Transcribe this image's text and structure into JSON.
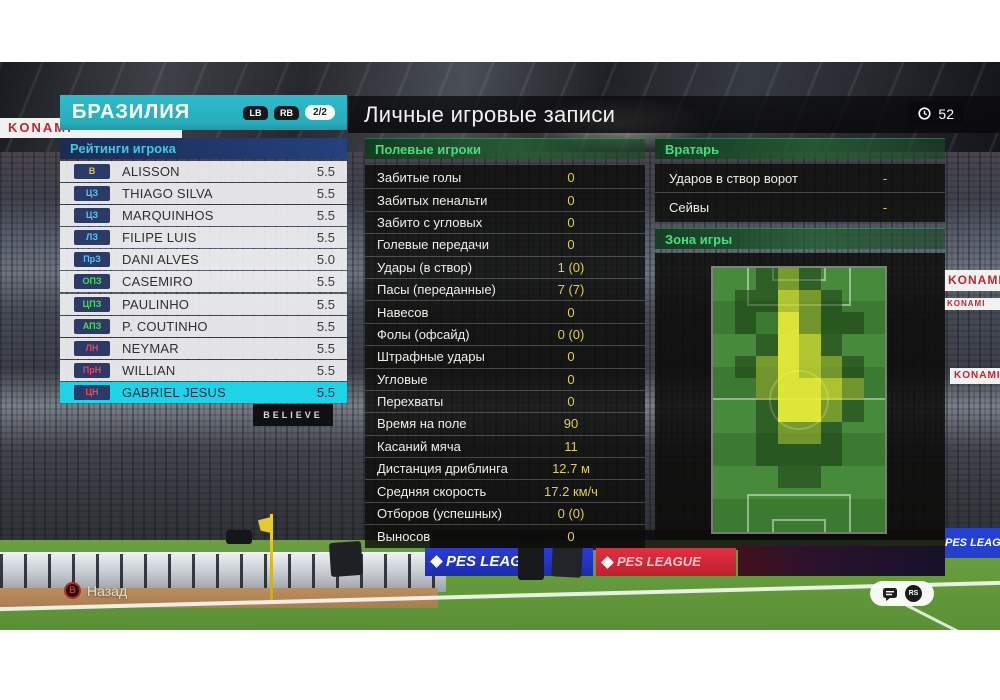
{
  "header": {
    "title": "Личные игровые записи",
    "clock_value": "52"
  },
  "team_panel": {
    "title": "БРАЗИЛИЯ",
    "lb_label": "LB",
    "rb_label": "RB",
    "page_indicator": "2/2",
    "section_title": "Рейтинги игрока",
    "position_colors": {
      "gk": "#e0c838",
      "def": "#55c8f0",
      "mid": "#50d855",
      "fwd": "#e84862"
    },
    "players": [
      {
        "pos": "В",
        "role": "gk",
        "name": "ALISSON",
        "rating": "5.5",
        "selected": false
      },
      {
        "pos": "ЦЗ",
        "role": "def",
        "name": "THIAGO SILVA",
        "rating": "5.5",
        "selected": false
      },
      {
        "pos": "ЦЗ",
        "role": "def",
        "name": "MARQUINHOS",
        "rating": "5.5",
        "selected": false
      },
      {
        "pos": "ЛЗ",
        "role": "def",
        "name": "FILIPE LUIS",
        "rating": "5.5",
        "selected": false
      },
      {
        "pos": "ПрЗ",
        "role": "def",
        "name": "DANI ALVES",
        "rating": "5.0",
        "selected": false
      },
      {
        "pos": "ОПЗ",
        "role": "mid",
        "name": "CASEMIRO",
        "rating": "5.5",
        "selected": false
      },
      {
        "pos": "ЦПЗ",
        "role": "mid",
        "name": "PAULINHO",
        "rating": "5.5",
        "selected": false
      },
      {
        "pos": "АПЗ",
        "role": "mid",
        "name": "P. COUTINHO",
        "rating": "5.5",
        "selected": false
      },
      {
        "pos": "ЛН",
        "role": "fwd",
        "name": "NEYMAR",
        "rating": "5.5",
        "selected": false
      },
      {
        "pos": "ПрН",
        "role": "fwd",
        "name": "WILLIAN",
        "rating": "5.5",
        "selected": false
      },
      {
        "pos": "ЦН",
        "role": "fwd",
        "name": "GABRIEL JESUS",
        "rating": "5.5",
        "selected": true
      }
    ]
  },
  "field_players": {
    "section_title": "Полевые игроки",
    "stats": [
      {
        "label": "Забитые голы",
        "value": "0"
      },
      {
        "label": "Забитых пенальти",
        "value": "0"
      },
      {
        "label": "Забито с угловых",
        "value": "0"
      },
      {
        "label": "Голевые передачи",
        "value": "0"
      },
      {
        "label": "Удары (в створ)",
        "value": "1 (0)"
      },
      {
        "label": "Пасы (переданные)",
        "value": "7 (7)"
      },
      {
        "label": "Навесов",
        "value": "0"
      },
      {
        "label": "Фолы (офсайд)",
        "value": "0 (0)"
      },
      {
        "label": "Штрафные удары",
        "value": "0"
      },
      {
        "label": "Угловые",
        "value": "0"
      },
      {
        "label": "Перехваты",
        "value": "0"
      },
      {
        "label": "Время на поле",
        "value": "90"
      },
      {
        "label": "Касаний мяча",
        "value": "11"
      },
      {
        "label": "Дистанция дриблинга",
        "value": "12.7 м"
      },
      {
        "label": "Средняя скорость",
        "value": "17.2 км/ч"
      },
      {
        "label": "Отборов (успешных)",
        "value": "0 (0)"
      },
      {
        "label": "Выносов",
        "value": "0"
      }
    ]
  },
  "goalkeeper": {
    "section_title": "Вратарь",
    "stats": [
      {
        "label": "Ударов в створ ворот",
        "value": "-"
      },
      {
        "label": "Сейвы",
        "value": "-"
      }
    ]
  },
  "play_zone": {
    "section_title": "Зона игры",
    "heatmap": {
      "cols": 8,
      "rows": 12,
      "legend": "0=none 1=low 2=medium 3=high 4=peak",
      "cells": [
        [
          0,
          0,
          1,
          2,
          1,
          0,
          0,
          0
        ],
        [
          0,
          1,
          1,
          3,
          2,
          1,
          0,
          0
        ],
        [
          0,
          1,
          0,
          4,
          2,
          1,
          1,
          0
        ],
        [
          0,
          0,
          1,
          4,
          3,
          1,
          0,
          0
        ],
        [
          0,
          1,
          2,
          4,
          3,
          2,
          1,
          0
        ],
        [
          0,
          0,
          2,
          4,
          4,
          3,
          2,
          0
        ],
        [
          0,
          0,
          1,
          4,
          4,
          2,
          1,
          0
        ],
        [
          0,
          0,
          1,
          2,
          2,
          1,
          0,
          0
        ],
        [
          0,
          0,
          1,
          1,
          1,
          1,
          0,
          0
        ],
        [
          0,
          0,
          0,
          1,
          1,
          0,
          0,
          0
        ],
        [
          0,
          0,
          0,
          0,
          0,
          0,
          0,
          0
        ],
        [
          0,
          0,
          0,
          0,
          0,
          0,
          0,
          0
        ]
      ]
    }
  },
  "footer": {
    "back_button": "B",
    "back_label": "Назад",
    "rs_label": "RS"
  },
  "background": {
    "ad_text": "PES LEAGUE",
    "banner_text": "BELIEVE",
    "side_text": "KONAMI"
  },
  "colors": {
    "accent_teal": "#28adbc",
    "selected_row": "#1fd2e6",
    "stat_value_yellow": "#dfce52",
    "section_green": "#41e07e",
    "ratings_cyan": "#3cc8e6"
  }
}
